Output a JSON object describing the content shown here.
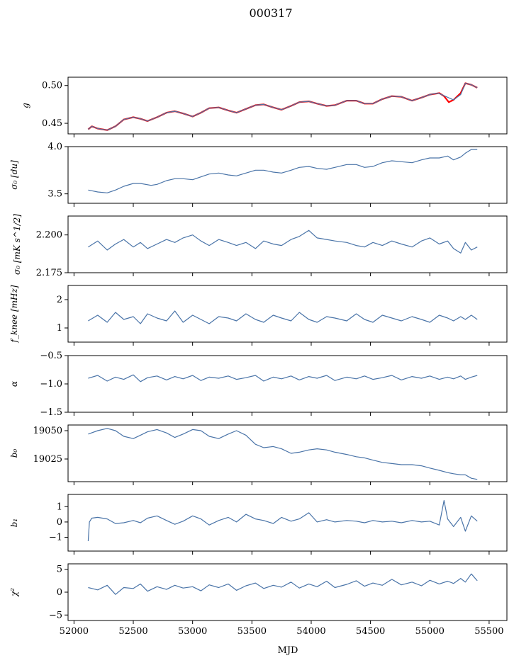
{
  "title": "000317",
  "xlabel": "MJD",
  "line_color": "#4a74a8",
  "highlight_color": "#ff0000",
  "chart_data": [
    {
      "type": "line",
      "ylabel": "g",
      "xlim": [
        51950,
        55650
      ],
      "ylim": [
        0.436,
        0.511
      ],
      "yticks": [
        0.45,
        0.5
      ],
      "yticklabels": [
        "0.45",
        "0.50"
      ],
      "series": [
        {
          "x": [
            52120,
            52150,
            52200,
            52280,
            52350,
            52420,
            52500,
            52560,
            52620,
            52700,
            52780,
            52850,
            52920,
            53000,
            53070,
            53140,
            53220,
            53300,
            53370,
            53450,
            53530,
            53600,
            53680,
            53750,
            53830,
            53900,
            53980,
            54050,
            54130,
            54200,
            54300,
            54380,
            54450,
            54520,
            54600,
            54680,
            54760,
            54850,
            54930,
            55000,
            55080,
            55120,
            55160,
            55200,
            55260,
            55300,
            55350,
            55400
          ],
          "y": [
            0.442,
            0.446,
            0.443,
            0.441,
            0.446,
            0.455,
            0.458,
            0.456,
            0.453,
            0.458,
            0.464,
            0.466,
            0.463,
            0.459,
            0.464,
            0.47,
            0.471,
            0.467,
            0.464,
            0.469,
            0.474,
            0.475,
            0.471,
            0.468,
            0.473,
            0.478,
            0.479,
            0.476,
            0.473,
            0.474,
            0.48,
            0.48,
            0.476,
            0.476,
            0.482,
            0.486,
            0.485,
            0.48,
            0.484,
            0.488,
            0.49,
            0.486,
            0.478,
            0.481,
            0.49,
            0.503,
            0.501,
            0.497
          ]
        },
        {
          "x": [
            52120,
            52150,
            52200,
            52280,
            52350,
            52420,
            52500,
            52560,
            52620,
            52700,
            52780,
            52850,
            52920,
            53000,
            53070,
            53140,
            53220,
            53300,
            53370,
            53450,
            53530,
            53600,
            53680,
            53750,
            53830,
            53900,
            53980,
            54050,
            54130,
            54200,
            54300,
            54380,
            54450,
            54520,
            54600,
            54680,
            54760,
            54850,
            54930,
            55000,
            55070,
            55200,
            55260,
            55300,
            55350,
            55400
          ],
          "y": [
            0.442,
            0.446,
            0.443,
            0.441,
            0.446,
            0.455,
            0.458,
            0.456,
            0.453,
            0.458,
            0.464,
            0.466,
            0.463,
            0.459,
            0.464,
            0.47,
            0.471,
            0.467,
            0.464,
            0.469,
            0.474,
            0.475,
            0.471,
            0.468,
            0.473,
            0.478,
            0.479,
            0.476,
            0.473,
            0.474,
            0.48,
            0.48,
            0.476,
            0.476,
            0.482,
            0.486,
            0.485,
            0.48,
            0.484,
            0.488,
            0.49,
            0.481,
            0.488,
            0.503,
            0.501,
            0.497
          ]
        }
      ]
    },
    {
      "type": "line",
      "ylabel": "σ₀ [du]",
      "xlim": [
        51950,
        55650
      ],
      "ylim": [
        3.4,
        4.0
      ],
      "yticks": [
        3.5,
        4.0
      ],
      "yticklabels": [
        "3.5",
        "4.0"
      ],
      "series": [
        {
          "x": [
            52120,
            52200,
            52280,
            52350,
            52420,
            52500,
            52560,
            52650,
            52700,
            52780,
            52850,
            52920,
            53000,
            53070,
            53140,
            53220,
            53300,
            53370,
            53450,
            53530,
            53600,
            53680,
            53750,
            53830,
            53900,
            53980,
            54050,
            54130,
            54200,
            54300,
            54380,
            54450,
            54520,
            54600,
            54680,
            54760,
            54850,
            54930,
            55000,
            55080,
            55150,
            55200,
            55260,
            55300,
            55350,
            55400
          ],
          "y": [
            3.54,
            3.52,
            3.51,
            3.54,
            3.58,
            3.61,
            3.61,
            3.59,
            3.6,
            3.64,
            3.66,
            3.66,
            3.65,
            3.68,
            3.71,
            3.72,
            3.7,
            3.69,
            3.72,
            3.75,
            3.75,
            3.73,
            3.72,
            3.75,
            3.78,
            3.79,
            3.77,
            3.76,
            3.78,
            3.81,
            3.81,
            3.78,
            3.79,
            3.83,
            3.85,
            3.84,
            3.83,
            3.86,
            3.88,
            3.88,
            3.9,
            3.86,
            3.89,
            3.93,
            3.97,
            3.97
          ]
        }
      ]
    },
    {
      "type": "line",
      "ylabel": "σ₀ [mK s^1/2]",
      "xlim": [
        51950,
        55650
      ],
      "ylim": [
        2.175,
        2.2125
      ],
      "yticks": [
        2.175,
        2.2
      ],
      "yticklabels": [
        "2.175",
        "2.200"
      ],
      "series": [
        {
          "x": [
            52120,
            52200,
            52280,
            52350,
            52420,
            52500,
            52560,
            52620,
            52700,
            52780,
            52850,
            52920,
            53000,
            53070,
            53140,
            53220,
            53300,
            53370,
            53450,
            53530,
            53600,
            53680,
            53750,
            53830,
            53900,
            53980,
            54050,
            54130,
            54200,
            54300,
            54380,
            54450,
            54520,
            54600,
            54680,
            54760,
            54850,
            54930,
            55000,
            55080,
            55150,
            55200,
            55260,
            55300,
            55350,
            55400
          ],
          "y": [
            2.192,
            2.196,
            2.19,
            2.194,
            2.197,
            2.192,
            2.195,
            2.191,
            2.194,
            2.197,
            2.195,
            2.198,
            2.2,
            2.196,
            2.193,
            2.197,
            2.195,
            2.193,
            2.195,
            2.191,
            2.196,
            2.194,
            2.193,
            2.197,
            2.199,
            2.203,
            2.198,
            2.197,
            2.196,
            2.195,
            2.193,
            2.192,
            2.195,
            2.193,
            2.196,
            2.194,
            2.192,
            2.196,
            2.198,
            2.194,
            2.196,
            2.191,
            2.188,
            2.195,
            2.19,
            2.192
          ]
        }
      ]
    },
    {
      "type": "line",
      "ylabel": "f_knee [mHz]",
      "xlim": [
        51950,
        55650
      ],
      "ylim": [
        0.5,
        2.5
      ],
      "yticks": [
        1,
        2
      ],
      "yticklabels": [
        "1",
        "2"
      ],
      "series": [
        {
          "x": [
            52120,
            52200,
            52280,
            52350,
            52420,
            52500,
            52560,
            52620,
            52700,
            52780,
            52850,
            52920,
            53000,
            53070,
            53140,
            53220,
            53300,
            53370,
            53450,
            53530,
            53600,
            53680,
            53750,
            53830,
            53900,
            53980,
            54050,
            54130,
            54200,
            54300,
            54380,
            54450,
            54520,
            54600,
            54680,
            54760,
            54850,
            54930,
            55000,
            55080,
            55150,
            55200,
            55260,
            55300,
            55350,
            55400
          ],
          "y": [
            1.25,
            1.45,
            1.2,
            1.55,
            1.3,
            1.4,
            1.15,
            1.5,
            1.35,
            1.25,
            1.6,
            1.2,
            1.45,
            1.3,
            1.15,
            1.4,
            1.35,
            1.25,
            1.5,
            1.3,
            1.2,
            1.45,
            1.35,
            1.25,
            1.55,
            1.3,
            1.2,
            1.4,
            1.35,
            1.25,
            1.5,
            1.3,
            1.2,
            1.45,
            1.35,
            1.25,
            1.4,
            1.3,
            1.2,
            1.45,
            1.35,
            1.25,
            1.4,
            1.3,
            1.45,
            1.3
          ]
        }
      ]
    },
    {
      "type": "line",
      "ylabel": "α",
      "xlim": [
        51950,
        55650
      ],
      "ylim": [
        -1.5,
        -0.5
      ],
      "yticks": [
        -1.5,
        -1.0,
        -0.5
      ],
      "yticklabels": [
        "−1.5",
        "−1.0",
        "−0.5"
      ],
      "series": [
        {
          "x": [
            52120,
            52200,
            52280,
            52350,
            52420,
            52500,
            52560,
            52620,
            52700,
            52780,
            52850,
            52920,
            53000,
            53070,
            53140,
            53220,
            53300,
            53370,
            53450,
            53530,
            53600,
            53680,
            53750,
            53830,
            53900,
            53980,
            54050,
            54130,
            54200,
            54300,
            54380,
            54450,
            54520,
            54600,
            54680,
            54760,
            54850,
            54930,
            55000,
            55080,
            55150,
            55200,
            55260,
            55300,
            55350,
            55400
          ],
          "y": [
            -0.9,
            -0.85,
            -0.95,
            -0.88,
            -0.92,
            -0.84,
            -0.96,
            -0.89,
            -0.86,
            -0.93,
            -0.87,
            -0.91,
            -0.85,
            -0.94,
            -0.88,
            -0.9,
            -0.86,
            -0.92,
            -0.89,
            -0.85,
            -0.95,
            -0.88,
            -0.91,
            -0.86,
            -0.93,
            -0.87,
            -0.9,
            -0.85,
            -0.94,
            -0.88,
            -0.91,
            -0.86,
            -0.92,
            -0.89,
            -0.85,
            -0.93,
            -0.87,
            -0.9,
            -0.86,
            -0.92,
            -0.88,
            -0.91,
            -0.86,
            -0.92,
            -0.88,
            -0.85
          ]
        }
      ]
    },
    {
      "type": "line",
      "ylabel": "b₀",
      "xlim": [
        51950,
        55650
      ],
      "ylim": [
        19005,
        19055
      ],
      "yticks": [
        19025,
        19050
      ],
      "yticklabels": [
        "19025",
        "19050"
      ],
      "series": [
        {
          "x": [
            52120,
            52200,
            52280,
            52350,
            52420,
            52500,
            52560,
            52620,
            52700,
            52780,
            52850,
            52920,
            53000,
            53070,
            53140,
            53220,
            53300,
            53370,
            53450,
            53530,
            53600,
            53680,
            53750,
            53830,
            53900,
            53980,
            54050,
            54130,
            54200,
            54300,
            54380,
            54450,
            54520,
            54600,
            54680,
            54760,
            54850,
            54930,
            55000,
            55080,
            55150,
            55200,
            55260,
            55300,
            55350,
            55400
          ],
          "y": [
            19047,
            19050,
            19052,
            19050,
            19045,
            19043,
            19046,
            19049,
            19051,
            19048,
            19044,
            19047,
            19051,
            19050,
            19045,
            19043,
            19047,
            19050,
            19046,
            19038,
            19035,
            19036,
            19034,
            19030,
            19031,
            19033,
            19034,
            19033,
            19031,
            19029,
            19027,
            19026,
            19024,
            19022,
            19021,
            19020,
            19020,
            19019,
            19017,
            19015,
            19013,
            19012,
            19011,
            19011,
            19008,
            19007
          ]
        }
      ]
    },
    {
      "type": "line",
      "ylabel": "b₁",
      "xlim": [
        51950,
        55650
      ],
      "ylim": [
        -1.9,
        1.8
      ],
      "yticks": [
        -1,
        0,
        1
      ],
      "yticklabels": [
        "−1",
        "0",
        "1"
      ],
      "series": [
        {
          "x": [
            52120,
            52130,
            52150,
            52200,
            52280,
            52350,
            52420,
            52500,
            52560,
            52620,
            52700,
            52780,
            52850,
            52920,
            53000,
            53070,
            53140,
            53220,
            53300,
            53370,
            53450,
            53530,
            53600,
            53680,
            53750,
            53830,
            53900,
            53980,
            54050,
            54130,
            54200,
            54300,
            54380,
            54450,
            54520,
            54600,
            54680,
            54760,
            54850,
            54930,
            55000,
            55080,
            55120,
            55150,
            55200,
            55260,
            55300,
            55350,
            55400
          ],
          "y": [
            -1.25,
            0.0,
            0.25,
            0.3,
            0.2,
            -0.1,
            -0.05,
            0.1,
            -0.05,
            0.25,
            0.4,
            0.1,
            -0.15,
            0.05,
            0.4,
            0.2,
            -0.2,
            0.1,
            0.3,
            0.0,
            0.5,
            0.2,
            0.1,
            -0.1,
            0.3,
            0.05,
            0.2,
            0.6,
            0.0,
            0.15,
            0.0,
            0.1,
            0.05,
            -0.05,
            0.1,
            0.0,
            0.05,
            -0.05,
            0.1,
            0.0,
            0.05,
            -0.2,
            1.4,
            0.2,
            -0.3,
            0.3,
            -0.6,
            0.4,
            0.05
          ]
        }
      ]
    },
    {
      "type": "line",
      "ylabel": "χ²",
      "xlim": [
        51950,
        55650
      ],
      "ylim": [
        -6.2,
        6.2
      ],
      "yticks": [
        -5,
        0,
        5
      ],
      "yticklabels": [
        "−5",
        "0",
        "5"
      ],
      "series": [
        {
          "x": [
            52120,
            52200,
            52280,
            52350,
            52420,
            52500,
            52560,
            52620,
            52700,
            52780,
            52850,
            52920,
            53000,
            53070,
            53140,
            53220,
            53300,
            53370,
            53450,
            53530,
            53600,
            53680,
            53750,
            53830,
            53900,
            53980,
            54050,
            54130,
            54200,
            54300,
            54380,
            54450,
            54520,
            54600,
            54680,
            54760,
            54850,
            54930,
            55000,
            55080,
            55150,
            55200,
            55260,
            55300,
            55350,
            55400
          ],
          "y": [
            1.0,
            0.5,
            1.5,
            -0.5,
            1.0,
            0.8,
            1.8,
            0.2,
            1.2,
            0.6,
            1.5,
            0.9,
            1.2,
            0.3,
            1.6,
            1.0,
            1.8,
            0.4,
            1.4,
            2.0,
            0.8,
            1.5,
            1.1,
            2.2,
            0.9,
            1.8,
            1.2,
            2.4,
            1.0,
            1.7,
            2.5,
            1.3,
            2.0,
            1.5,
            2.8,
            1.6,
            2.2,
            1.4,
            2.6,
            1.8,
            2.4,
            1.9,
            3.0,
            2.2,
            4.0,
            2.5
          ]
        }
      ]
    }
  ],
  "xticks": [
    52000,
    52500,
    53000,
    53500,
    54000,
    54500,
    55000,
    55500
  ],
  "xticklabels": [
    "52000",
    "52500",
    "53000",
    "53500",
    "54000",
    "54500",
    "55000",
    "55500"
  ]
}
